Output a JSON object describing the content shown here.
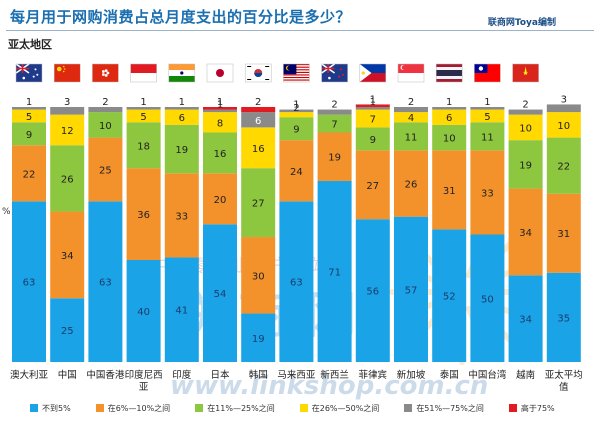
{
  "header": {
    "title": "每月用于网购消费占总月度支出的百分比是多少？",
    "credit": "联商网Toya编制",
    "region": "亚太地区"
  },
  "watermark": {
    "text_big": "联商网",
    "text_small": "中国零售业门户网站",
    "url": "www.linkshop.com.cn"
  },
  "colors": {
    "under5": "#1aa3e6",
    "p6_10": "#f3922b",
    "p11_25": "#8dc63f",
    "p26_50": "#ffd900",
    "p51_75": "#8a8a8a",
    "over75": "#e21a22"
  },
  "chart_data": {
    "type": "bar",
    "stacked": true,
    "yunit": "%",
    "ylim": [
      0,
      100
    ],
    "categories": [
      "澳大利亚",
      "中国",
      "中国香港",
      "印度尼西亚",
      "印度",
      "日本",
      "韩国",
      "马来西亚",
      "新西兰",
      "菲律宾",
      "新加坡",
      "泰国",
      "中国台湾",
      "越南",
      "亚太平均值"
    ],
    "flags": [
      "flag-australia",
      "flag-china",
      "flag-hong-kong",
      "flag-indonesia",
      "flag-india",
      "flag-japan",
      "flag-south-korea",
      "flag-malaysia",
      "flag-new-zealand",
      "flag-philippines",
      "flag-singapore",
      "flag-thailand",
      "flag-taiwan",
      "flag-vietnam",
      "flag-none"
    ],
    "series": [
      {
        "name": "不到5%",
        "color_key": "under5",
        "values": [
          63,
          25,
          63,
          40,
          41,
          54,
          19,
          63,
          71,
          56,
          57,
          52,
          50,
          34,
          35
        ]
      },
      {
        "name": "在6%—10%之间",
        "color_key": "p6_10",
        "values": [
          22,
          34,
          25,
          36,
          33,
          20,
          30,
          24,
          19,
          27,
          26,
          31,
          33,
          34,
          31
        ]
      },
      {
        "name": "在11%—25%之间",
        "color_key": "p11_25",
        "values": [
          9,
          26,
          10,
          18,
          19,
          16,
          27,
          9,
          7,
          9,
          11,
          10,
          11,
          19,
          22
        ]
      },
      {
        "name": "在26%—50%之间",
        "color_key": "p26_50",
        "values": [
          5,
          12,
          0,
          5,
          6,
          8,
          16,
          2,
          0,
          7,
          4,
          6,
          5,
          10,
          10
        ]
      },
      {
        "name": "在51%—75%之间",
        "color_key": "p51_75",
        "values": [
          1,
          3,
          2,
          1,
          1,
          1,
          6,
          1,
          2,
          1,
          2,
          1,
          1,
          2,
          3
        ]
      },
      {
        "name": "高于75%",
        "color_key": "over75",
        "values": [
          0,
          0,
          0,
          0,
          0,
          1,
          2,
          0,
          0,
          1,
          0,
          0,
          0,
          0,
          0
        ]
      }
    ]
  }
}
